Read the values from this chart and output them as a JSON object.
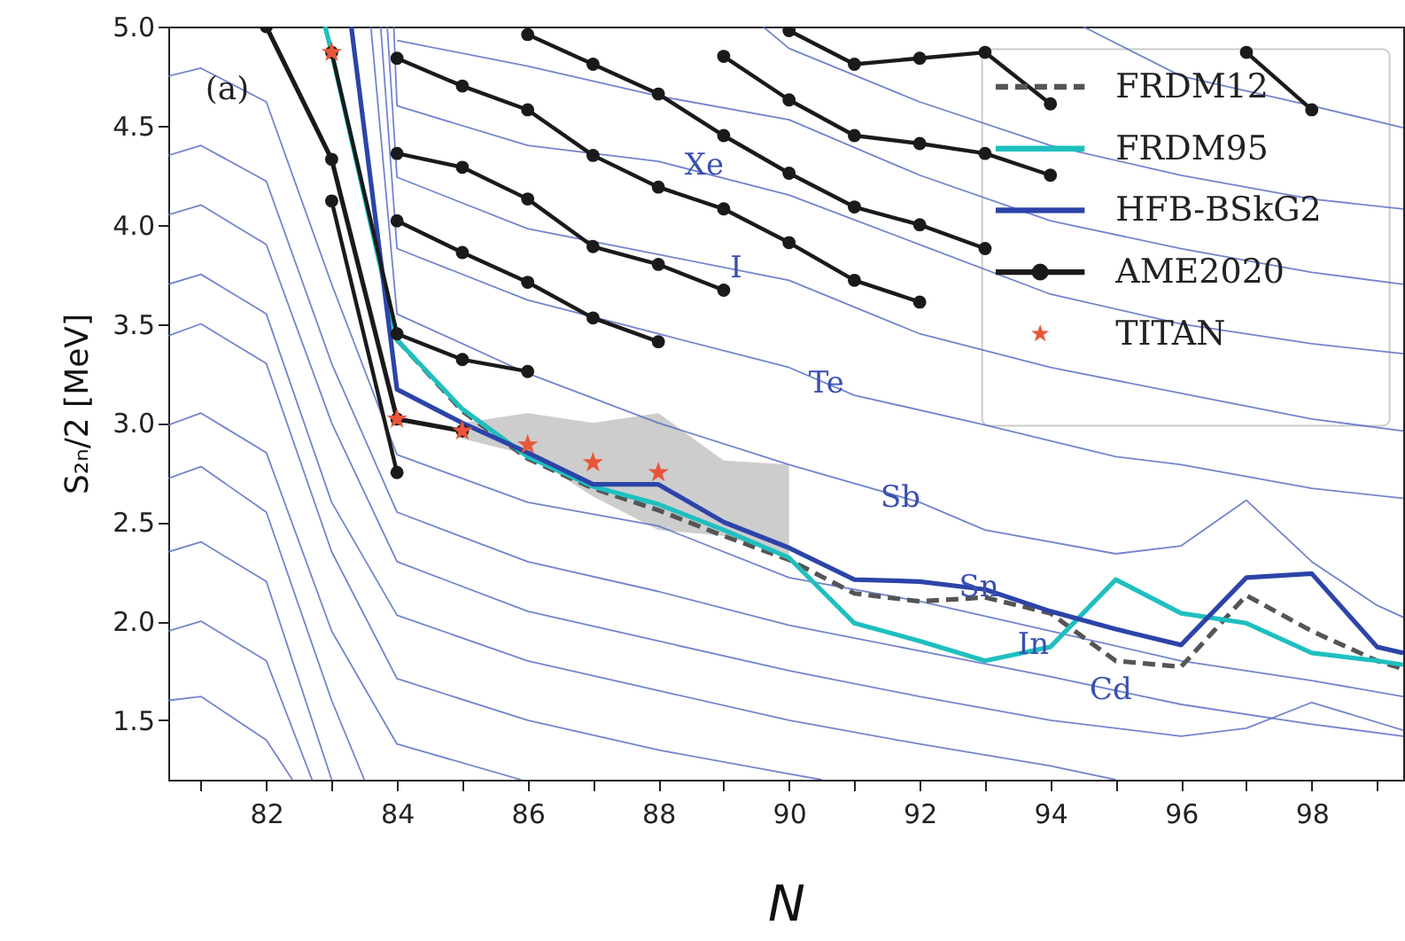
{
  "chart_data": {
    "type": "line",
    "xlabel": "N",
    "ylabel": "S₂ₙ/2 [MeV]",
    "xlim": [
      80.5,
      99.4
    ],
    "ylim": [
      1.2,
      5.0
    ],
    "xticks": [
      {
        "value": 81,
        "label": null
      },
      82,
      {
        "value": 83,
        "label": null
      },
      84,
      {
        "value": 85,
        "label": null
      },
      86,
      {
        "value": 87,
        "label": null
      },
      88,
      {
        "value": 89,
        "label": null
      },
      90,
      {
        "value": 91,
        "label": null
      },
      92,
      {
        "value": 93,
        "label": null
      },
      94,
      {
        "value": 95,
        "label": null
      },
      96,
      {
        "value": 97,
        "label": null
      },
      98,
      {
        "value": 99,
        "label": null
      }
    ],
    "yticks": [
      1.5,
      {
        "value": 2,
        "label": "2.0"
      },
      2.5,
      {
        "value": 3,
        "label": "3.0"
      },
      3.5,
      {
        "value": 4,
        "label": "4.0"
      },
      4.5,
      {
        "value": 5,
        "label": "5.0"
      }
    ],
    "grid": false,
    "legend": "top right",
    "annotations": [
      "(a)",
      {
        "text": "Xe",
        "x": 88.4,
        "y": 4.3
      },
      {
        "text": "I",
        "x": 89.1,
        "y": 3.78
      },
      {
        "text": "Te",
        "x": 90.3,
        "y": 3.2
      },
      {
        "text": "Sb",
        "x": 91.4,
        "y": 2.62
      },
      {
        "text": "Sn",
        "x": 92.6,
        "y": 2.17
      },
      {
        "text": "In",
        "x": 93.5,
        "y": 1.88
      },
      {
        "text": "Cd",
        "x": 94.6,
        "y": 1.65
      }
    ],
    "series": [
      {
        "type": "area",
        "color": "#c8c8c8",
        "x": [
          85,
          86,
          87,
          88,
          89,
          90
        ],
        "values": [
          null,
          null,
          null,
          null,
          null,
          null
        ],
        "lower": [
          2.92,
          2.84,
          2.63,
          2.46,
          2.43,
          2.33
        ],
        "upper": [
          3.0,
          3.05,
          3.0,
          3.05,
          2.81,
          2.79
        ]
      },
      {
        "color": "#5a6ec4",
        "x": [
          83.75,
          84,
          86,
          88,
          90,
          91,
          93,
          95,
          96,
          98,
          99.4
        ],
        "values": [
          5.0,
          3.88,
          3.62,
          3.45,
          3.28,
          3.14,
          2.99,
          2.83,
          2.79,
          2.67,
          2.62
        ]
      },
      {
        "color": "#5a6ec4",
        "x": [
          83.85,
          84,
          86,
          88,
          90,
          92,
          94,
          96,
          98,
          99.4
        ],
        "values": [
          5.0,
          4.24,
          3.98,
          3.85,
          3.72,
          3.45,
          3.28,
          3.15,
          3.02,
          2.96
        ]
      },
      {
        "color": "#5a6ec4",
        "x": [
          83.95,
          84,
          86,
          88,
          90,
          92,
          94,
          96,
          98,
          99.4
        ],
        "values": [
          5.0,
          4.6,
          4.4,
          4.32,
          4.15,
          3.9,
          3.65,
          3.5,
          3.4,
          3.35
        ]
      },
      {
        "color": "#5a6ec4",
        "x": [
          84,
          86,
          88,
          90,
          92,
          94,
          96,
          98,
          99.4
        ],
        "values": [
          4.93,
          4.8,
          4.65,
          4.53,
          4.25,
          4.02,
          3.88,
          3.76,
          3.7
        ]
      },
      {
        "color": "#5a6ec4",
        "x": [
          89.6,
          90,
          92,
          94,
          96,
          98,
          99.4
        ],
        "values": [
          5.0,
          4.89,
          4.62,
          4.4,
          4.25,
          4.13,
          4.08
        ]
      },
      {
        "color": "#5a6ec4",
        "x": [
          94.5,
          96,
          98,
          99.4
        ],
        "values": [
          5.0,
          4.75,
          4.6,
          4.49
        ]
      },
      {
        "color": "#5a6ec4",
        "x": [
          83.6,
          84,
          86,
          88,
          90,
          92,
          93,
          95,
          96,
          97,
          98,
          99,
          99.4
        ],
        "values": [
          5.0,
          3.55,
          3.25,
          3.0,
          2.79,
          2.6,
          2.46,
          2.34,
          2.38,
          2.61,
          2.3,
          2.08,
          2.02
        ]
      },
      {
        "color": "#5a6ec4",
        "x": [
          80.5,
          81,
          82,
          83,
          84,
          86,
          88,
          90,
          92,
          94,
          96,
          98,
          99.4
        ],
        "values": [
          4.75,
          4.79,
          4.62,
          3.7,
          2.84,
          2.6,
          2.48,
          2.22,
          2.1,
          1.95,
          1.8,
          1.7,
          1.62
        ]
      },
      {
        "color": "#5a6ec4",
        "x": [
          80.5,
          81,
          82,
          83,
          84,
          86,
          88,
          90,
          92,
          94,
          96,
          98,
          99.4
        ],
        "values": [
          4.35,
          4.4,
          4.22,
          3.3,
          2.55,
          2.3,
          2.15,
          1.98,
          1.85,
          1.72,
          1.58,
          1.48,
          1.42
        ]
      },
      {
        "color": "#5a6ec4",
        "x": [
          80.5,
          81,
          82,
          83,
          84,
          86,
          88,
          90,
          92,
          94,
          96,
          97,
          98,
          99.4
        ],
        "values": [
          4.05,
          4.1,
          3.9,
          3.0,
          2.3,
          2.05,
          1.9,
          1.75,
          1.62,
          1.5,
          1.42,
          1.46,
          1.59,
          1.45
        ]
      },
      {
        "color": "#5a6ec4",
        "x": [
          80.5,
          81,
          82,
          83,
          84,
          86,
          88,
          90,
          92,
          94,
          95
        ],
        "values": [
          3.7,
          3.75,
          3.55,
          2.6,
          2.03,
          1.8,
          1.65,
          1.5,
          1.38,
          1.27,
          1.2
        ]
      },
      {
        "color": "#5a6ec4",
        "x": [
          80.5,
          81,
          82,
          83,
          84,
          86,
          88,
          90,
          90.5
        ],
        "values": [
          3.44,
          3.5,
          3.3,
          2.35,
          1.71,
          1.5,
          1.35,
          1.23,
          1.2
        ]
      },
      {
        "color": "#5a6ec4",
        "x": [
          80.5,
          81,
          82,
          83,
          84,
          85.9
        ],
        "values": [
          2.99,
          3.05,
          2.85,
          1.95,
          1.38,
          1.2
        ]
      },
      {
        "color": "#5a6ec4",
        "x": [
          80.5,
          81,
          82,
          83,
          83.5
        ],
        "values": [
          2.72,
          2.78,
          2.55,
          1.6,
          1.2
        ]
      },
      {
        "color": "#5a6ec4",
        "x": [
          80.5,
          81,
          82,
          83
        ],
        "values": [
          2.35,
          2.4,
          2.2,
          1.2
        ]
      },
      {
        "color": "#5a6ec4",
        "x": [
          80.5,
          81,
          82,
          82.7
        ],
        "values": [
          1.95,
          2.0,
          1.8,
          1.2
        ]
      },
      {
        "color": "#5a6ec4",
        "x": [
          80.5,
          81,
          82,
          82.4
        ],
        "values": [
          1.6,
          1.62,
          1.4,
          1.2
        ]
      },
      {
        "name": "FRDM12",
        "color": "#555555",
        "line_style": "dashed",
        "x": [
          84,
          85,
          86,
          87,
          88,
          89,
          90,
          91,
          92,
          93,
          94,
          95,
          96,
          97,
          98,
          99,
          99.4
        ],
        "values": [
          3.42,
          3.06,
          2.82,
          2.67,
          2.56,
          2.43,
          2.31,
          2.14,
          2.1,
          2.12,
          2.04,
          1.8,
          1.77,
          2.13,
          1.95,
          1.8,
          1.76
        ]
      },
      {
        "name": "FRDM95",
        "color": "#1fbfbf",
        "x": [
          82.9,
          83,
          84,
          85,
          86,
          87,
          88,
          89,
          90,
          91,
          92,
          93,
          94,
          95,
          96,
          97,
          98,
          99,
          99.4
        ],
        "values": [
          5.0,
          4.87,
          3.42,
          3.07,
          2.83,
          2.68,
          2.59,
          2.46,
          2.32,
          1.99,
          1.9,
          1.8,
          1.87,
          2.21,
          2.04,
          1.99,
          1.84,
          1.8,
          1.78
        ]
      },
      {
        "name": "HFB-BSkG2",
        "color": "#2c44a8",
        "x": [
          83.3,
          84,
          85,
          86,
          87,
          88,
          89,
          90,
          91,
          92,
          93,
          94,
          95,
          96,
          97,
          98,
          99,
          99.4
        ],
        "values": [
          5.0,
          3.17,
          3.0,
          2.85,
          2.69,
          2.69,
          2.5,
          2.37,
          2.21,
          2.2,
          2.16,
          2.05,
          1.96,
          1.88,
          2.22,
          2.24,
          1.87,
          1.84
        ]
      },
      {
        "name": "AME2020",
        "color": "#1a1a1a",
        "marker": "circle",
        "x": [
          82,
          83,
          84,
          85
        ],
        "values": [
          5.0,
          4.33,
          3.02,
          2.96
        ]
      },
      {
        "color": "#1a1a1a",
        "marker": "circle",
        "x": [
          83,
          84
        ],
        "values": [
          4.12,
          2.75
        ]
      },
      {
        "color": "#1a1a1a",
        "marker": "circle",
        "x": [
          83,
          84,
          85,
          86
        ],
        "values": [
          4.87,
          3.45,
          3.32,
          3.26
        ]
      },
      {
        "color": "#1a1a1a",
        "marker": "circle",
        "x": [
          84,
          85,
          86,
          87,
          88
        ],
        "values": [
          4.02,
          3.86,
          3.71,
          3.53,
          3.41
        ]
      },
      {
        "color": "#1a1a1a",
        "marker": "circle",
        "x": [
          84,
          85,
          86,
          87,
          88,
          89
        ],
        "values": [
          4.36,
          4.29,
          4.13,
          3.89,
          3.8,
          3.67
        ]
      },
      {
        "color": "#1a1a1a",
        "marker": "circle",
        "x": [
          84,
          85,
          86,
          87,
          88,
          89,
          90,
          91,
          92
        ],
        "values": [
          4.84,
          4.7,
          4.58,
          4.35,
          4.19,
          4.08,
          3.91,
          3.72,
          3.61
        ]
      },
      {
        "color": "#1a1a1a",
        "marker": "circle",
        "x": [
          86,
          87,
          88,
          89,
          90,
          91,
          92,
          93
        ],
        "values": [
          4.96,
          4.81,
          4.66,
          4.45,
          4.26,
          4.09,
          4.0,
          3.88
        ]
      },
      {
        "color": "#1a1a1a",
        "marker": "circle",
        "x": [
          89,
          90,
          91,
          92,
          93,
          94
        ],
        "values": [
          4.85,
          4.63,
          4.45,
          4.41,
          4.36,
          4.25
        ]
      },
      {
        "color": "#1a1a1a",
        "marker": "circle",
        "x": [
          90,
          91,
          92,
          93,
          94
        ],
        "values": [
          4.98,
          4.81,
          4.84,
          4.87,
          4.61
        ]
      },
      {
        "color": "#1a1a1a",
        "marker": "circle",
        "x": [
          97,
          98
        ],
        "values": [
          4.87,
          4.58
        ]
      },
      {
        "type": "scatter",
        "name": "TITAN",
        "color": "#e8563a",
        "marker": "star",
        "x": [
          83,
          84,
          85,
          86,
          87,
          88
        ],
        "values": [
          4.87,
          3.02,
          2.96,
          2.89,
          2.8,
          2.75
        ]
      }
    ]
  }
}
